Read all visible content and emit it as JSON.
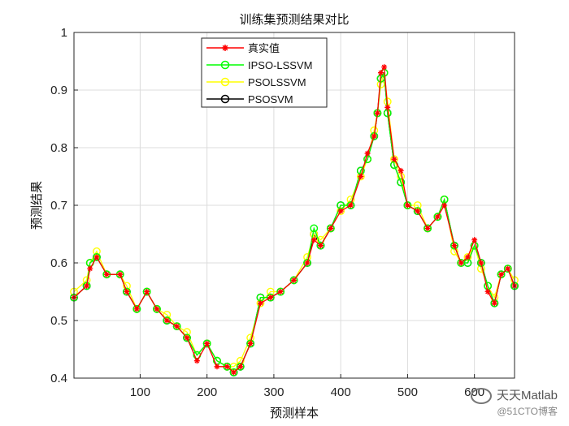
{
  "chart_data": {
    "type": "line",
    "title": "训练集预测结果对比",
    "xlabel": "预测样本",
    "ylabel": "预测结果",
    "xlim": [
      1,
      660
    ],
    "ylim": [
      0.4,
      1.0
    ],
    "xticks": [
      100,
      200,
      300,
      400,
      500,
      600
    ],
    "yticks": [
      0.4,
      0.5,
      0.6,
      0.7,
      0.8,
      0.9,
      1.0
    ],
    "ytick_labels": [
      "0.4",
      "0.5",
      "0.6",
      "0.7",
      "0.8",
      "0.9",
      "1"
    ],
    "grid": true,
    "legend_position": "top-center",
    "x": [
      1,
      20,
      25,
      35,
      50,
      70,
      80,
      95,
      110,
      125,
      140,
      155,
      170,
      185,
      200,
      215,
      230,
      240,
      250,
      265,
      280,
      295,
      310,
      330,
      350,
      360,
      370,
      385,
      400,
      415,
      430,
      440,
      450,
      455,
      460,
      465,
      470,
      480,
      490,
      500,
      515,
      530,
      545,
      555,
      570,
      580,
      590,
      600,
      610,
      620,
      630,
      640,
      650,
      660
    ],
    "series": [
      {
        "name": "真实值",
        "color": "#ff0000",
        "marker": "star",
        "values": [
          0.54,
          0.56,
          0.59,
          0.61,
          0.58,
          0.58,
          0.55,
          0.52,
          0.55,
          0.52,
          0.5,
          0.49,
          0.47,
          0.43,
          0.46,
          0.42,
          0.42,
          0.41,
          0.42,
          0.46,
          0.53,
          0.54,
          0.55,
          0.57,
          0.6,
          0.64,
          0.63,
          0.66,
          0.69,
          0.7,
          0.75,
          0.79,
          0.82,
          0.86,
          0.93,
          0.94,
          0.87,
          0.78,
          0.76,
          0.7,
          0.69,
          0.66,
          0.68,
          0.7,
          0.63,
          0.6,
          0.61,
          0.64,
          0.6,
          0.55,
          0.53,
          0.58,
          0.59,
          0.56
        ]
      },
      {
        "name": "IPSO-LSSVM",
        "color": "#00ff00",
        "marker": "circle",
        "values": [
          0.54,
          0.56,
          0.6,
          0.61,
          0.58,
          0.58,
          0.55,
          0.52,
          0.55,
          0.52,
          0.5,
          0.49,
          0.47,
          0.44,
          0.46,
          0.43,
          0.42,
          0.41,
          0.42,
          0.46,
          0.54,
          0.54,
          0.55,
          0.57,
          0.6,
          0.66,
          0.63,
          0.66,
          0.7,
          0.7,
          0.76,
          0.78,
          0.82,
          0.86,
          0.92,
          0.93,
          0.86,
          0.77,
          0.74,
          0.7,
          0.69,
          0.66,
          0.68,
          0.71,
          0.63,
          0.6,
          0.6,
          0.63,
          0.6,
          0.56,
          0.53,
          0.58,
          0.59,
          0.56
        ]
      },
      {
        "name": "PSOLSSVM",
        "color": "#ffff00",
        "marker": "circle",
        "values": [
          0.55,
          0.57,
          0.6,
          0.62,
          0.58,
          0.58,
          0.56,
          0.52,
          0.55,
          0.52,
          0.51,
          0.49,
          0.48,
          0.44,
          0.46,
          0.43,
          0.42,
          0.42,
          0.43,
          0.47,
          0.53,
          0.55,
          0.55,
          0.57,
          0.61,
          0.65,
          0.64,
          0.66,
          0.69,
          0.71,
          0.75,
          0.78,
          0.83,
          0.86,
          0.91,
          0.93,
          0.88,
          0.78,
          0.75,
          0.7,
          0.7,
          0.66,
          0.68,
          0.71,
          0.62,
          0.6,
          0.61,
          0.63,
          0.59,
          0.56,
          0.54,
          0.58,
          0.59,
          0.57
        ]
      },
      {
        "name": "PSOSVM",
        "color": "#000000",
        "marker": "circle",
        "values": [
          0.54,
          0.56,
          0.6,
          0.61,
          0.58,
          0.58,
          0.55,
          0.52,
          0.55,
          0.52,
          0.5,
          0.49,
          0.47,
          0.44,
          0.46,
          0.43,
          0.42,
          0.41,
          0.42,
          0.46,
          0.54,
          0.54,
          0.55,
          0.57,
          0.6,
          0.65,
          0.63,
          0.66,
          0.7,
          0.7,
          0.76,
          0.78,
          0.82,
          0.86,
          0.92,
          0.93,
          0.86,
          0.77,
          0.74,
          0.7,
          0.69,
          0.66,
          0.68,
          0.71,
          0.63,
          0.6,
          0.6,
          0.63,
          0.6,
          0.56,
          0.53,
          0.58,
          0.59,
          0.56
        ]
      }
    ]
  },
  "watermark": {
    "main": "天天Matlab",
    "sub": "@51CTO博客"
  }
}
